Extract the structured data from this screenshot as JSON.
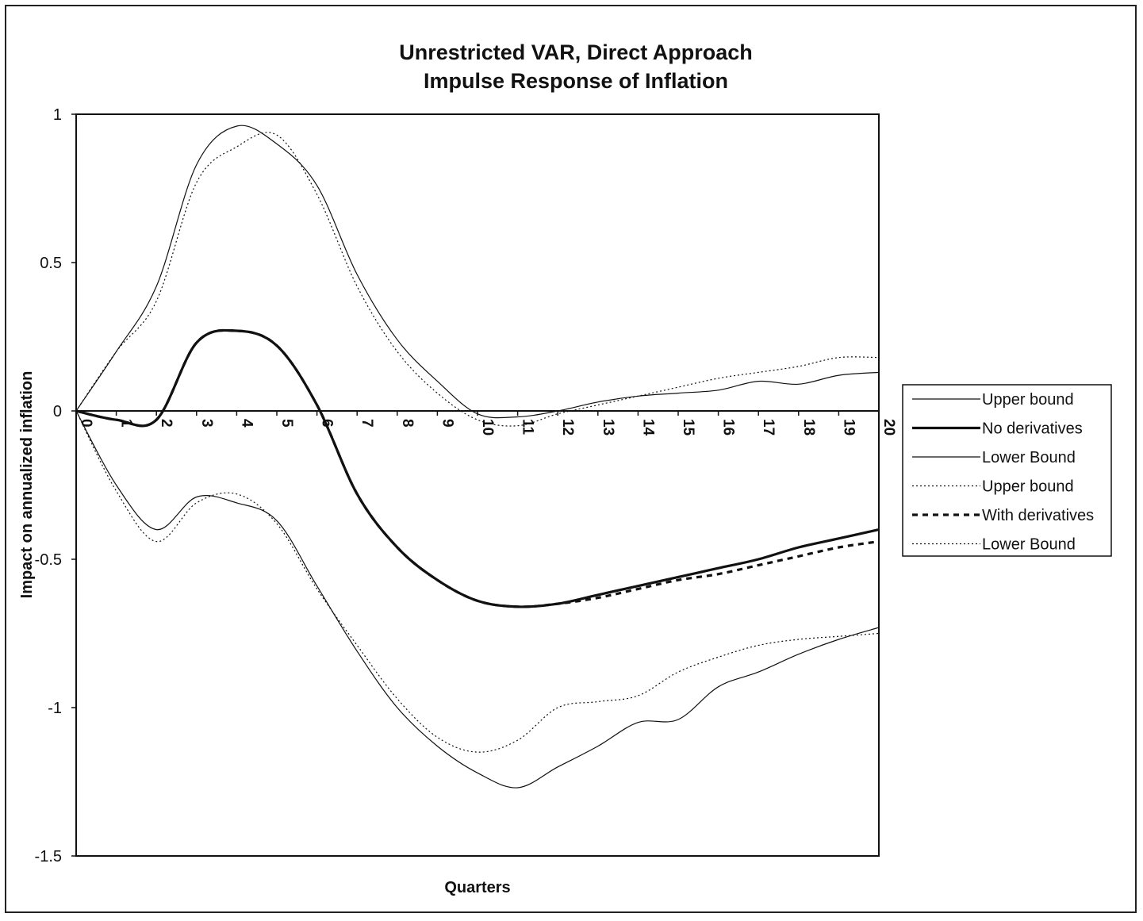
{
  "chart_data": {
    "type": "line",
    "title": "Unrestricted VAR, Direct Approach",
    "subtitle": "Impulse Response of Inflation",
    "xlabel": "Quarters",
    "ylabel": "Impact on annualized inflation",
    "ylim": [
      -1.5,
      1
    ],
    "yticks": [
      1,
      0.5,
      0,
      -0.5,
      -1,
      -1.5
    ],
    "ytick_labels": [
      "1",
      "0.5",
      "0",
      "-0.5",
      "-1",
      "-1.5"
    ],
    "x": [
      0,
      1,
      2,
      3,
      4,
      5,
      6,
      7,
      8,
      9,
      10,
      11,
      12,
      13,
      14,
      15,
      16,
      17,
      18,
      19,
      20
    ],
    "x_tick_labels": [
      "0",
      "1",
      "2",
      "3",
      "4",
      "5",
      "6",
      "7",
      "8",
      "9",
      "10",
      "11",
      "12",
      "13",
      "14",
      "15",
      "16",
      "17",
      "18",
      "19",
      "20"
    ],
    "grid": false,
    "legend_position": "right",
    "series": [
      {
        "name": "Upper bound",
        "style": "thin-solid",
        "values": [
          0,
          0.2,
          0.42,
          0.83,
          0.96,
          0.9,
          0.76,
          0.46,
          0.24,
          0.1,
          -0.01,
          -0.02,
          0,
          0.03,
          0.05,
          0.06,
          0.07,
          0.1,
          0.09,
          0.12,
          0.13
        ]
      },
      {
        "name": "No derivatives",
        "style": "thick-solid",
        "values": [
          0,
          -0.03,
          -0.03,
          0.23,
          0.27,
          0.22,
          0.02,
          -0.28,
          -0.46,
          -0.57,
          -0.64,
          -0.66,
          -0.65,
          -0.62,
          -0.59,
          -0.56,
          -0.53,
          -0.5,
          -0.46,
          -0.43,
          -0.4
        ]
      },
      {
        "name": "Lower Bound",
        "style": "thin-solid",
        "values": [
          0,
          -0.25,
          -0.4,
          -0.29,
          -0.31,
          -0.37,
          -0.59,
          -0.81,
          -1,
          -1.13,
          -1.22,
          -1.27,
          -1.2,
          -1.13,
          -1.05,
          -1.04,
          -0.93,
          -0.88,
          -0.82,
          -0.77,
          -0.73
        ]
      },
      {
        "name": "Upper bound",
        "style": "thin-dotted",
        "values": [
          0,
          0.2,
          0.37,
          0.77,
          0.89,
          0.93,
          0.73,
          0.42,
          0.2,
          0.06,
          -0.03,
          -0.05,
          -0.01,
          0.02,
          0.05,
          0.08,
          0.11,
          0.13,
          0.15,
          0.18,
          0.18
        ]
      },
      {
        "name": "With derivatives",
        "style": "thick-dashed",
        "values": [
          0,
          -0.03,
          -0.03,
          0.23,
          0.27,
          0.22,
          0.02,
          -0.28,
          -0.46,
          -0.57,
          -0.64,
          -0.66,
          -0.65,
          -0.63,
          -0.6,
          -0.57,
          -0.55,
          -0.52,
          -0.49,
          -0.46,
          -0.44
        ]
      },
      {
        "name": "Lower Bound",
        "style": "thin-dotted",
        "values": [
          0,
          -0.27,
          -0.44,
          -0.31,
          -0.28,
          -0.38,
          -0.6,
          -0.79,
          -0.97,
          -1.1,
          -1.15,
          -1.11,
          -1,
          -0.98,
          -0.96,
          -0.88,
          -0.83,
          -0.79,
          -0.77,
          -0.76,
          -0.75
        ]
      }
    ]
  }
}
